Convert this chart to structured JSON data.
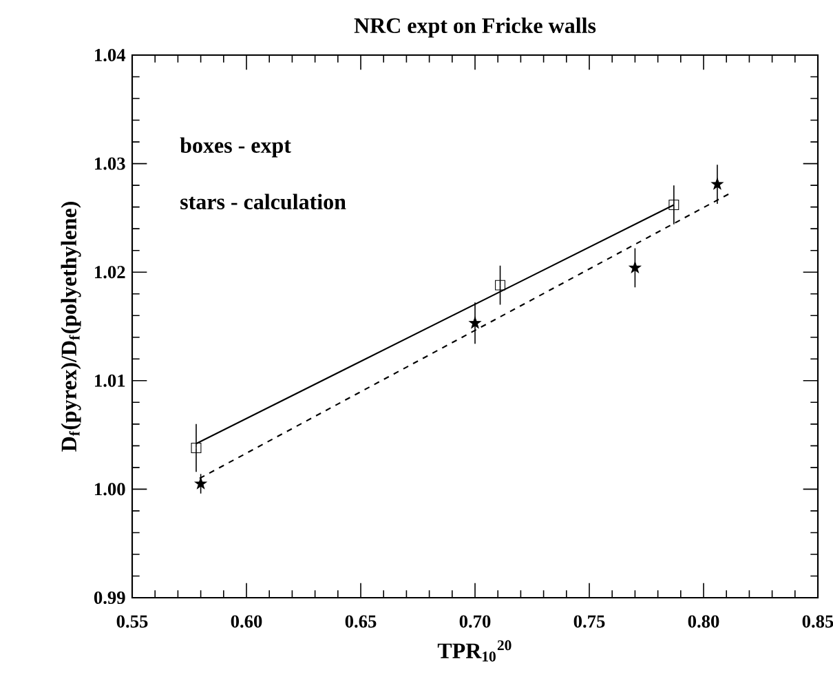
{
  "chart_data": {
    "type": "scatter",
    "title": "NRC expt on Fricke walls",
    "xlabel": "TPR$_{10}$$^{20}$",
    "ylabel": "D$_{f}$(pyrex)/D$_{f}$(polyethylene)",
    "xlim": [
      0.55,
      0.85
    ],
    "ylim": [
      0.99,
      1.04
    ],
    "xticks": [
      0.55,
      {
        "value": 0.6,
        "label": "0.60"
      },
      0.65,
      {
        "value": 0.7,
        "label": "0.70"
      },
      0.75,
      {
        "value": 0.8,
        "label": "0.80"
      },
      0.85
    ],
    "yticks": [
      0.99,
      {
        "value": 1.0,
        "label": "1.00"
      },
      1.01,
      1.02,
      1.03,
      1.04
    ],
    "grid": false,
    "annotations": [
      "boxes -   expt",
      "stars - calculation"
    ],
    "series": [
      {
        "marker": "square",
        "color": "#000000",
        "x": [
          0.578,
          0.711,
          0.787
        ],
        "values": [
          1.0038,
          1.0188,
          1.0262
        ],
        "errors": [
          0.0022,
          0.0018,
          0.0018
        ]
      },
      {
        "marker": "star",
        "color": "#000000",
        "x": [
          0.58,
          0.7,
          0.77,
          0.806
        ],
        "values": [
          1.0005,
          1.0153,
          1.0204,
          1.0281
        ],
        "errors": [
          0.0009,
          0.0019,
          0.0018,
          0.0018
        ]
      },
      {
        "type": "line",
        "marker": "none",
        "line_style": "solid",
        "color": "#000000",
        "x": [
          0.578,
          0.787
        ],
        "values": [
          1.0042,
          1.0262
        ]
      },
      {
        "type": "line",
        "marker": "none",
        "line_style": "dashed",
        "color": "#000000",
        "x": [
          0.5795,
          0.811
        ],
        "values": [
          1.001,
          1.0272
        ]
      }
    ]
  }
}
